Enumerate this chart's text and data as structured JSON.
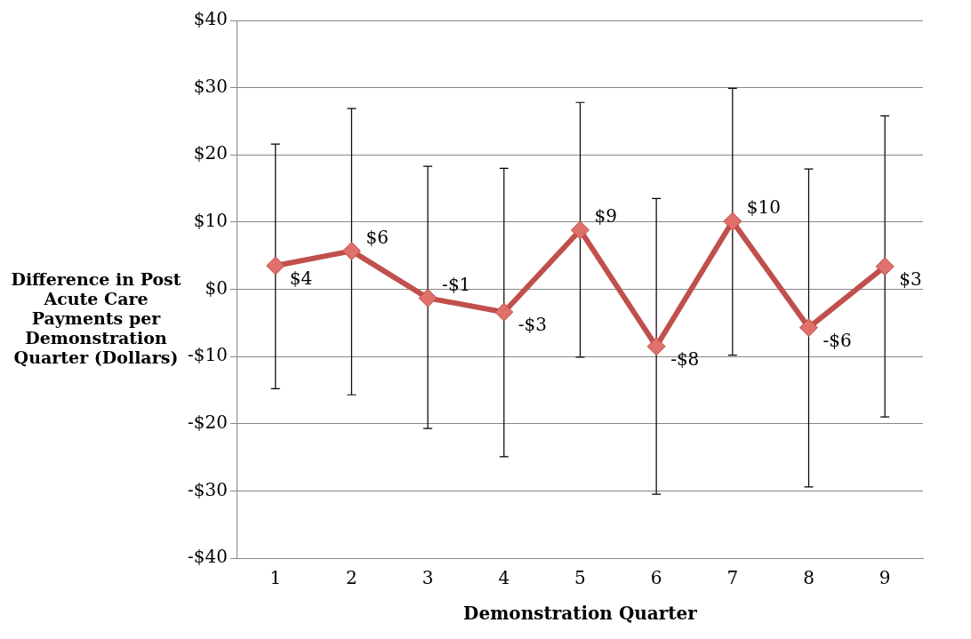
{
  "chart_data": {
    "type": "line",
    "xlabel": "Demonstration Quarter",
    "ylabel": "Difference in Post Acute Care Payments per Demonstration Quarter (Dollars)",
    "categories": [
      "1",
      "2",
      "3",
      "4",
      "5",
      "6",
      "7",
      "8",
      "9"
    ],
    "series": [
      {
        "color": "#c0504d",
        "values": [
          3.5,
          5.7,
          -1.3,
          -3.4,
          8.8,
          -8.5,
          10.1,
          -5.7,
          3.4
        ],
        "errors": [
          [
            -14.8,
            21.6
          ],
          [
            -15.7,
            26.9
          ],
          [
            -20.7,
            18.3
          ],
          [
            -24.9,
            18
          ],
          [
            -10.1,
            27.8
          ],
          [
            -30.5,
            13.5
          ],
          [
            -9.8,
            29.9
          ],
          [
            -29.4,
            17.9
          ],
          [
            -19,
            25.8
          ]
        ],
        "value_labels": [
          "$4",
          "$6",
          "-$1",
          "-$3",
          "$9",
          "-$8",
          "$10",
          "-$6",
          "$3"
        ]
      }
    ],
    "ylim": [
      -40,
      40
    ],
    "yticks": [
      {
        "value": -40,
        "label": "-$40"
      },
      {
        "value": -30,
        "label": "-$30"
      },
      {
        "value": -20,
        "label": "-$20"
      },
      {
        "value": -10,
        "label": "-$10"
      },
      {
        "value": 0,
        "label": "$0"
      },
      {
        "value": 10,
        "label": "$10"
      },
      {
        "value": 20,
        "label": "$20"
      },
      {
        "value": 30,
        "label": "$30"
      },
      {
        "value": 40,
        "label": "$40"
      }
    ],
    "grid": "y",
    "legend": false,
    "marker": "diamond",
    "line_style": "solid"
  }
}
